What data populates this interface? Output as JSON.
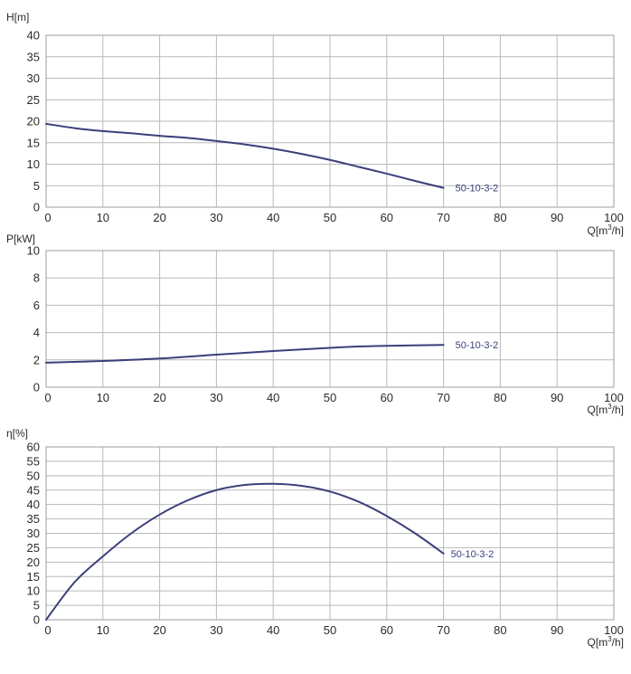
{
  "colors": {
    "series": "#3a3f7a",
    "grid": "#b9b9b9",
    "text": "#2b2b2b"
  },
  "chart_data": [
    {
      "type": "line",
      "ylabel": "H[m]",
      "xlabel_prefix": "Q[m",
      "xlabel_sup": "3",
      "xlabel_suffix": "/h]",
      "xlim": [
        0,
        100
      ],
      "ylim": [
        0,
        40
      ],
      "xticks": [
        0,
        10,
        20,
        30,
        40,
        50,
        60,
        70,
        80,
        90,
        100
      ],
      "yticks": [
        0,
        5,
        10,
        15,
        20,
        25,
        30,
        35,
        40
      ],
      "grid": true,
      "series": [
        {
          "name": "50-10-3-2",
          "x": [
            0,
            5,
            10,
            15,
            20,
            25,
            30,
            35,
            40,
            45,
            50,
            55,
            60,
            65,
            70
          ],
          "y": [
            19.4,
            18.4,
            17.7,
            17.2,
            16.6,
            16.1,
            15.4,
            14.6,
            13.6,
            12.4,
            11.0,
            9.4,
            7.8,
            6.1,
            4.5
          ]
        }
      ]
    },
    {
      "type": "line",
      "ylabel": "P[kW]",
      "xlabel_prefix": "Q[m",
      "xlabel_sup": "3",
      "xlabel_suffix": "/h]",
      "xlim": [
        0,
        100
      ],
      "ylim": [
        0,
        10
      ],
      "xticks": [
        0,
        10,
        20,
        30,
        40,
        50,
        60,
        70,
        80,
        90,
        100
      ],
      "yticks": [
        0,
        2,
        4,
        6,
        8,
        10
      ],
      "grid": true,
      "series": [
        {
          "name": "50-10-3-2",
          "x": [
            0,
            10,
            20,
            30,
            40,
            50,
            55,
            60,
            70
          ],
          "y": [
            1.8,
            1.92,
            2.1,
            2.38,
            2.65,
            2.88,
            2.98,
            3.03,
            3.1
          ]
        }
      ]
    },
    {
      "type": "line",
      "ylabel": "η[%]",
      "xlabel_prefix": "Q[m",
      "xlabel_sup": "3",
      "xlabel_suffix": "/h]",
      "xlim": [
        0,
        100
      ],
      "ylim": [
        0,
        60
      ],
      "xticks": [
        0,
        10,
        20,
        30,
        40,
        50,
        60,
        70,
        80,
        90,
        100
      ],
      "yticks": [
        0,
        5,
        10,
        15,
        20,
        25,
        30,
        35,
        40,
        45,
        50,
        55,
        60
      ],
      "grid": true,
      "series": [
        {
          "name": "50-10-3-2",
          "x": [
            0,
            5,
            10,
            15,
            20,
            25,
            30,
            35,
            40,
            45,
            50,
            55,
            60,
            65,
            70
          ],
          "y": [
            0,
            13,
            22,
            30,
            36.5,
            41.5,
            45,
            46.8,
            47.2,
            46.5,
            44.5,
            41,
            36,
            30,
            23
          ]
        }
      ]
    }
  ]
}
